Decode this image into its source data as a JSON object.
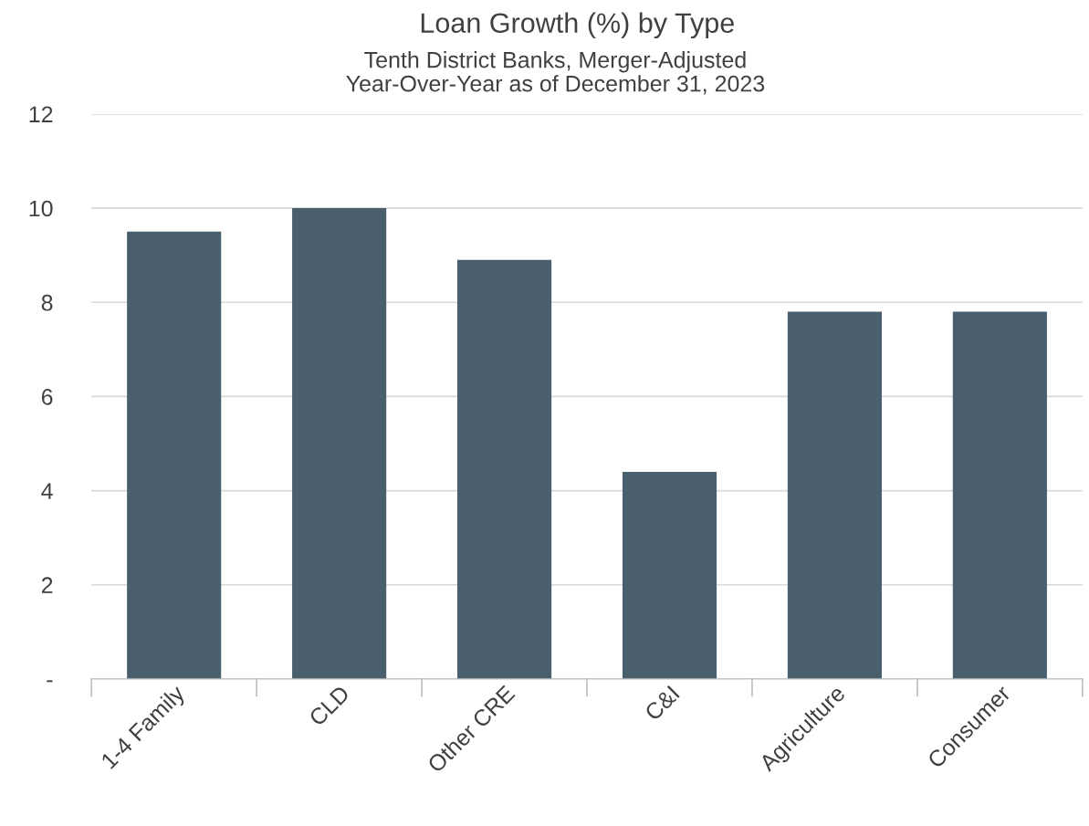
{
  "chart_data": {
    "type": "bar",
    "title": "Loan Growth (%) by Type",
    "subtitle": "Tenth District Banks, Merger-Adjusted\nYear-Over-Year as of December 31, 2023",
    "categories": [
      "1-4 Family",
      "CLD",
      "Other CRE",
      "C&I",
      "Agriculture",
      "Consumer"
    ],
    "values": [
      9.5,
      10.0,
      8.9,
      4.4,
      7.8,
      7.8
    ],
    "color": "#4a5f6d",
    "ylim": [
      0,
      12
    ],
    "yticks": [
      {
        "value": 0,
        "label": "-"
      },
      2,
      4,
      6,
      8,
      10,
      12
    ],
    "grid": "y"
  }
}
